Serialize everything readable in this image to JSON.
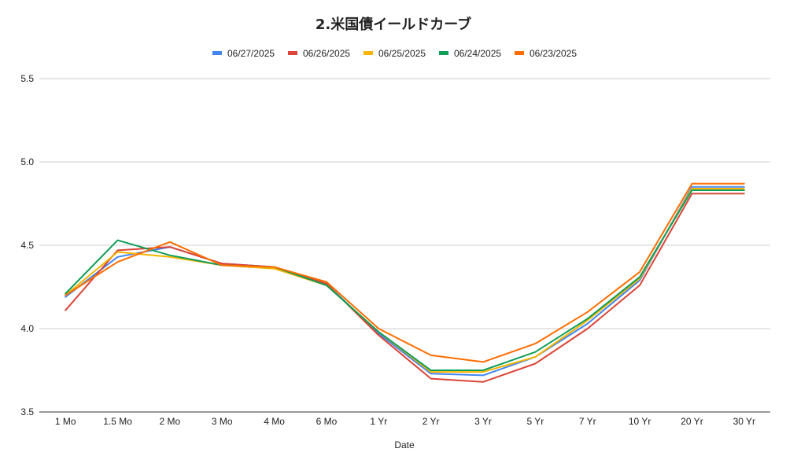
{
  "chart_data": {
    "type": "line",
    "title": "2.米国債イールドカーブ",
    "xlabel": "Date",
    "ylabel": "",
    "ylim": [
      3.5,
      5.5
    ],
    "yticks": [
      "3.5",
      "4.0",
      "4.5",
      "5.0",
      "5.5"
    ],
    "grid": true,
    "legend_position": "top",
    "categories": [
      "1 Mo",
      "1.5 Mo",
      "2 Mo",
      "3 Mo",
      "4 Mo",
      "6 Mo",
      "1 Yr",
      "2 Yr",
      "3 Yr",
      "5 Yr",
      "7 Yr",
      "10 Yr",
      "20 Yr",
      "30 Yr"
    ],
    "series": [
      {
        "name": "06/27/2025",
        "color": "#4285f4",
        "values": [
          4.19,
          4.43,
          4.49,
          4.39,
          4.37,
          4.27,
          3.97,
          3.73,
          3.72,
          3.83,
          4.03,
          4.29,
          4.85,
          4.85
        ]
      },
      {
        "name": "06/26/2025",
        "color": "#db4437",
        "values": [
          4.11,
          4.47,
          4.49,
          4.39,
          4.37,
          4.27,
          3.96,
          3.7,
          3.68,
          3.79,
          4.0,
          4.26,
          4.81,
          4.81
        ]
      },
      {
        "name": "06/25/2025",
        "color": "#f4b400",
        "values": [
          4.2,
          4.46,
          4.43,
          4.38,
          4.36,
          4.26,
          3.98,
          3.74,
          3.74,
          3.83,
          4.05,
          4.3,
          4.84,
          4.84
        ]
      },
      {
        "name": "06/24/2025",
        "color": "#0f9d58",
        "values": [
          4.21,
          4.53,
          4.44,
          4.38,
          4.37,
          4.26,
          3.98,
          3.75,
          3.75,
          3.86,
          4.06,
          4.31,
          4.83,
          4.83
        ]
      },
      {
        "name": "06/23/2025",
        "color": "#ff6d01",
        "values": [
          4.2,
          4.4,
          4.52,
          4.38,
          4.37,
          4.28,
          4.0,
          3.84,
          3.8,
          3.91,
          4.1,
          4.34,
          4.87,
          4.87
        ]
      }
    ]
  }
}
